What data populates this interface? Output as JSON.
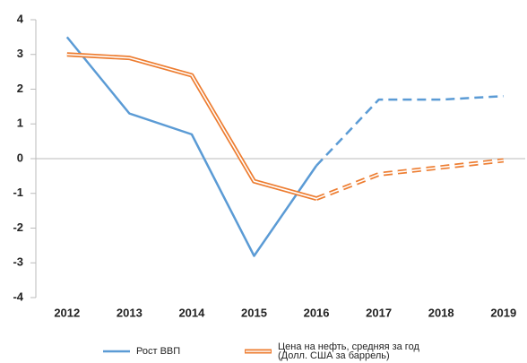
{
  "chart_data": {
    "type": "line",
    "categories": [
      "2012",
      "2013",
      "2014",
      "2015",
      "2016",
      "2017",
      "2018",
      "2019"
    ],
    "series": [
      {
        "name": "Рост ВВП",
        "color": "#5b9bd5",
        "values": [
          3.5,
          1.3,
          0.7,
          -2.8,
          -0.2,
          1.7,
          1.7,
          1.8
        ]
      },
      {
        "name": "Цена на нефть, средняя за год\n(Долл. США за баррель)",
        "color": "#ed7d31",
        "outlined": true,
        "values": [
          3.0,
          2.9,
          2.4,
          -0.65,
          -1.15,
          -0.45,
          -0.25,
          -0.05
        ]
      }
    ],
    "dashed_from": "2016",
    "ylim": [
      -4,
      4
    ],
    "yticks": [
      -4,
      -3,
      -2,
      -1,
      0,
      1,
      2,
      3,
      4
    ],
    "legend": "bottom"
  }
}
